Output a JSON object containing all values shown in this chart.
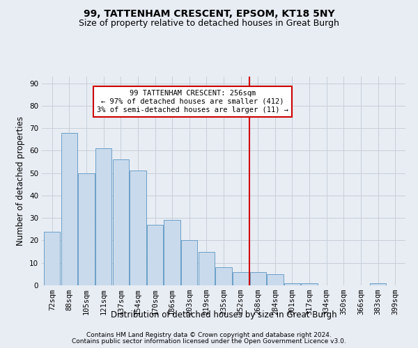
{
  "title1": "99, TATTENHAM CRESCENT, EPSOM, KT18 5NY",
  "title2": "Size of property relative to detached houses in Great Burgh",
  "xlabel": "Distribution of detached houses by size in Great Burgh",
  "ylabel": "Number of detached properties",
  "categories": [
    "72sqm",
    "88sqm",
    "105sqm",
    "121sqm",
    "137sqm",
    "154sqm",
    "170sqm",
    "186sqm",
    "203sqm",
    "219sqm",
    "235sqm",
    "252sqm",
    "268sqm",
    "284sqm",
    "301sqm",
    "317sqm",
    "334sqm",
    "350sqm",
    "366sqm",
    "383sqm",
    "399sqm"
  ],
  "values": [
    24,
    68,
    50,
    61,
    56,
    51,
    27,
    29,
    20,
    15,
    8,
    6,
    6,
    5,
    1,
    1,
    0,
    0,
    0,
    1,
    0
  ],
  "bar_color": "#c9daec",
  "bar_edge_color": "#6b9fc8",
  "vline_x_index": 11.5,
  "annotation_text_line1": "99 TATTENHAM CRESCENT: 256sqm",
  "annotation_text_line2": "← 97% of detached houses are smaller (412)",
  "annotation_text_line3": "3% of semi-detached houses are larger (11) →",
  "annotation_box_color": "#ffffff",
  "annotation_box_edge": "#cc0000",
  "vline_color": "#cc0000",
  "ylim": [
    0,
    93
  ],
  "yticks": [
    0,
    10,
    20,
    30,
    40,
    50,
    60,
    70,
    80,
    90
  ],
  "grid_color": "#c8cfd8",
  "bg_color": "#e8edf4",
  "footer1": "Contains HM Land Registry data © Crown copyright and database right 2024.",
  "footer2": "Contains public sector information licensed under the Open Government Licence v3.0.",
  "title_fontsize": 10,
  "subtitle_fontsize": 9,
  "axis_label_fontsize": 8.5,
  "tick_fontsize": 7.5,
  "annotation_fontsize": 7.5,
  "footer_fontsize": 6.5
}
